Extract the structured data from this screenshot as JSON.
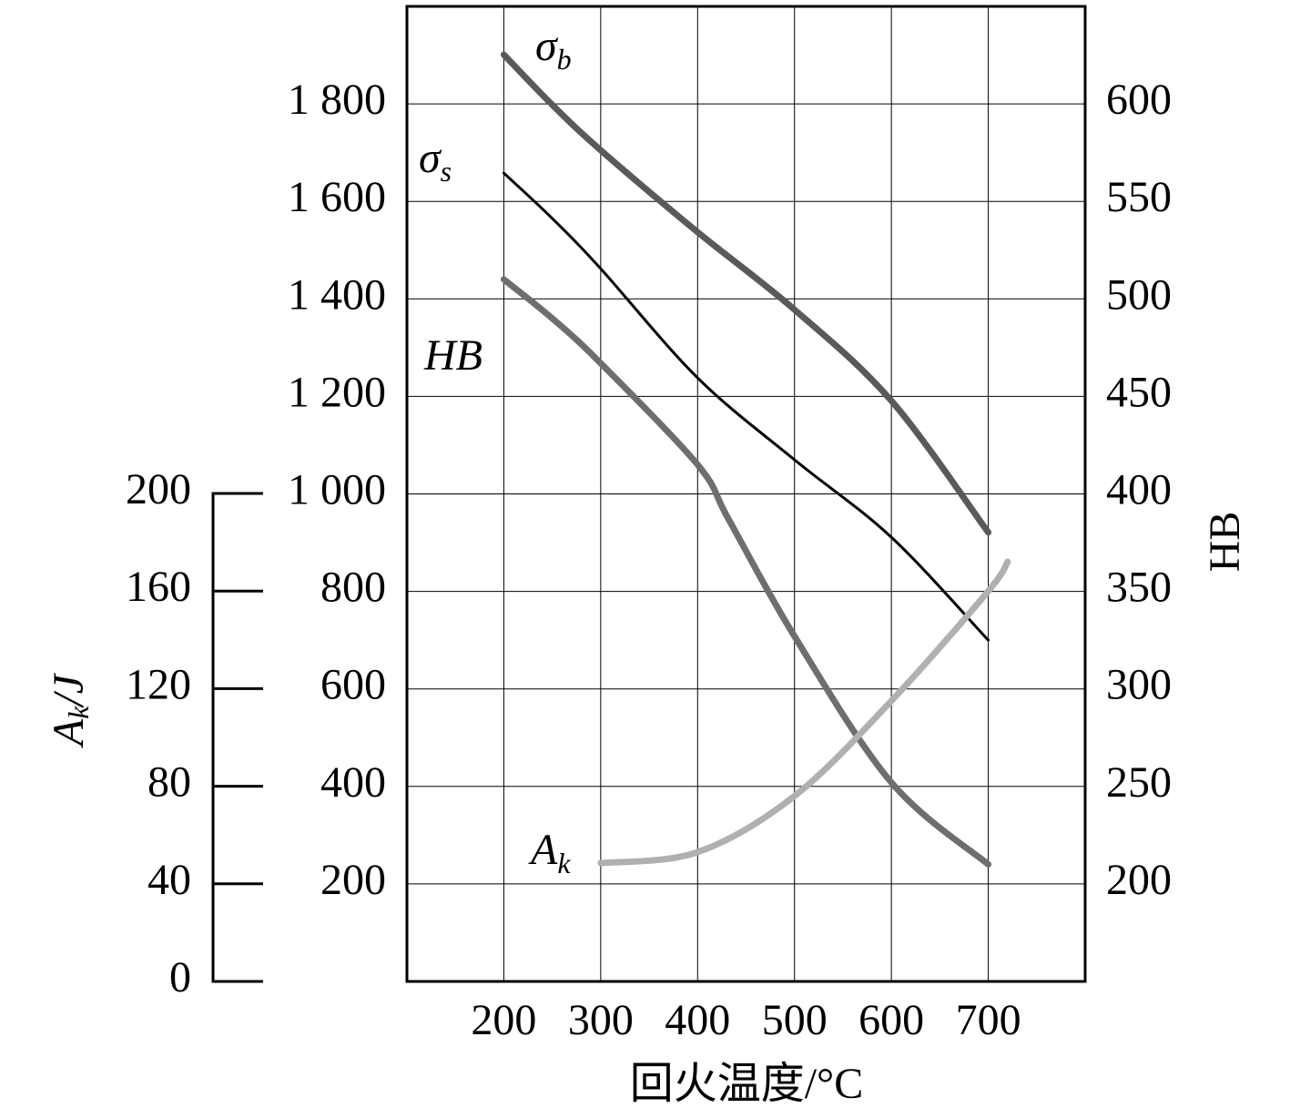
{
  "chart_data": {
    "type": "line",
    "xlabel": "回火温度/°C",
    "y2label": "HB",
    "y3label": {
      "main": "A",
      "sub": "k",
      "rest": "/J"
    },
    "xlim": [
      100,
      800
    ],
    "xticks": [
      200,
      300,
      400,
      500,
      600,
      700
    ],
    "ylim": [
      0,
      2000
    ],
    "yticks": [
      {
        "value": 200,
        "label": "200"
      },
      {
        "value": 400,
        "label": "400"
      },
      {
        "value": 600,
        "label": "600"
      },
      {
        "value": 800,
        "label": "800"
      },
      {
        "value": 1000,
        "label": "1 000"
      },
      {
        "value": 1200,
        "label": "1 200"
      },
      {
        "value": 1400,
        "label": "1 400"
      },
      {
        "value": 1600,
        "label": "1 600"
      },
      {
        "value": 1800,
        "label": "1 800"
      }
    ],
    "y2lim": [
      150,
      650
    ],
    "y2ticks": [
      200,
      250,
      300,
      350,
      400,
      450,
      500,
      550,
      600
    ],
    "y3lim": [
      0,
      200
    ],
    "y3ticks": [
      0,
      40,
      80,
      120,
      160,
      200
    ],
    "grid": true,
    "series": [
      {
        "label": {
          "main": "σ",
          "sub": "b"
        },
        "color": "#5a5a5a",
        "width": 7,
        "x": [
          200,
          250,
          300,
          400,
          500,
          600,
          700
        ],
        "values": [
          1901,
          1798,
          1705,
          1537,
          1378,
          1191,
          921
        ]
      },
      {
        "label": {
          "main": "σ",
          "sub": "s"
        },
        "color": "#000000",
        "width": 3,
        "x": [
          200,
          250,
          300,
          400,
          500,
          600,
          700
        ],
        "values": [
          1658,
          1565,
          1462,
          1238,
          1070,
          911,
          700
        ]
      },
      {
        "label": {
          "main": "HB"
        },
        "color": "#6e6e6e",
        "width": 7,
        "axis": "y2",
        "x": [
          200,
          250,
          300,
          400,
          432,
          500,
          600,
          700
        ],
        "values": [
          510,
          490,
          467,
          415,
          387,
          327,
          252,
          210
        ]
      },
      {
        "label": {
          "main": "A",
          "sub": "k"
        },
        "color": "#b0b0b0",
        "width": 7,
        "axis": "y3",
        "x": [
          300,
          400,
          500,
          600,
          700,
          720
        ],
        "values": [
          48.5,
          53,
          76,
          115,
          160,
          172
        ]
      }
    ]
  }
}
